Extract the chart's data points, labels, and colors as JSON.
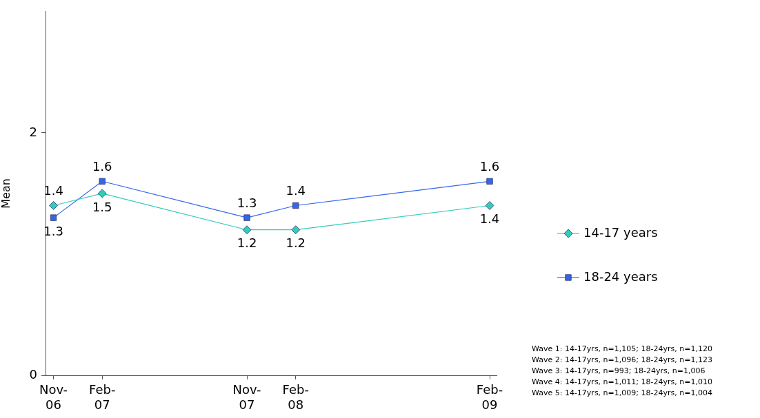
{
  "chart_data": {
    "type": "line",
    "ylabel": "Mean",
    "x": [
      "2006-11",
      "2007-02",
      "2007-11",
      "2008-02",
      "2009-02"
    ],
    "xlim": [
      "2006-10-17",
      "2009-02-14"
    ],
    "xticks": [
      {
        "value": "2006-11",
        "label": "Nov-06"
      },
      {
        "value": "2007-02",
        "label": "Feb-07"
      },
      {
        "value": "2007-11",
        "label": "Nov-07"
      },
      {
        "value": "2008-02",
        "label": "Feb-08"
      },
      {
        "value": "2009-02",
        "label": "Feb-09"
      }
    ],
    "ylim": [
      0,
      3
    ],
    "yticks": [
      0,
      2
    ],
    "series": [
      {
        "name": "14-17 years",
        "color": "#33ccbb",
        "marker": "diamond",
        "values": [
          1.4,
          1.5,
          1.2,
          1.2,
          1.4
        ]
      },
      {
        "name": "18-24 years",
        "color": "#3366ee",
        "marker": "square",
        "values": [
          1.3,
          1.6,
          1.3,
          1.4,
          1.6
        ]
      }
    ],
    "data_labels": true,
    "legend": "right",
    "line_style": "solid",
    "annotations": [
      "Wave 1: 14-17yrs, n=1,105; 18-24yrs, n=1,120",
      "Wave 2: 14-17yrs, n=1,096; 18-24yrs, n=1,123",
      "Wave 3: 14-17yrs, n=993; 18-24yrs, n=1,006",
      "Wave 4: 14-17yrs, n=1,011; 18-24yrs, n=1,010",
      "Wave 5: 14-17yrs, n=1,009; 18-24yrs, n=1,004"
    ]
  }
}
